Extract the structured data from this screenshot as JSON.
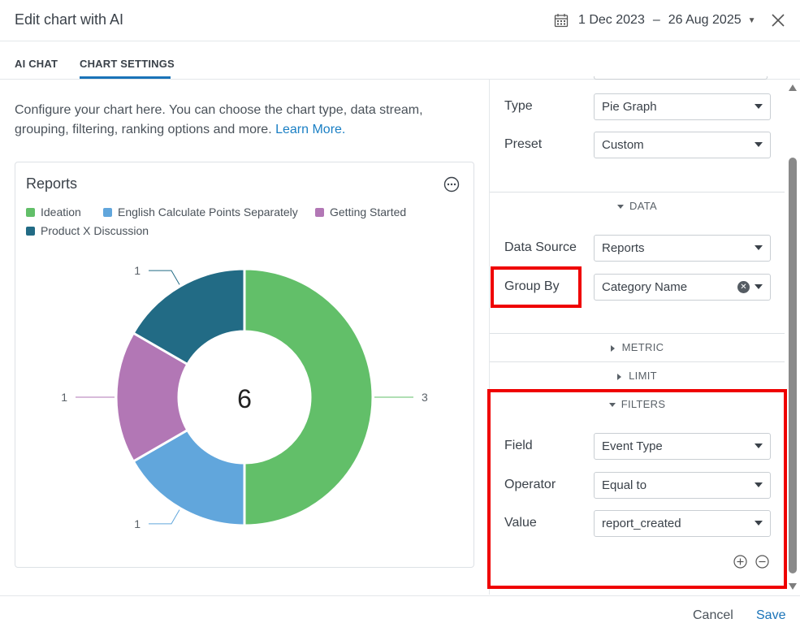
{
  "dialog": {
    "title": "Edit chart with AI",
    "date_start": "1 Dec 2023",
    "date_sep": "–",
    "date_end": "26 Aug 2025"
  },
  "tabs": [
    {
      "label": "AI CHAT",
      "active": false
    },
    {
      "label": "CHART SETTINGS",
      "active": true
    }
  ],
  "intro": {
    "text": "Configure your chart here. You can choose the chart type, data stream, grouping, filtering, ranking options and more.",
    "link": "Learn More."
  },
  "chart_card": {
    "title": "Reports",
    "center_total": "6"
  },
  "chart_data": {
    "type": "pie",
    "title": "Reports",
    "donut": true,
    "center_label": "6",
    "series": [
      {
        "name": "Ideation",
        "value": 3,
        "color": "#62bf69"
      },
      {
        "name": "English Calculate Points Separately",
        "value": 1,
        "color": "#61a6dc"
      },
      {
        "name": "Getting Started",
        "value": 1,
        "color": "#b277b5"
      },
      {
        "name": "Product X Discussion",
        "value": 1,
        "color": "#226b85"
      }
    ],
    "legend_position": "top-left"
  },
  "settings": {
    "type_label": "Type",
    "type_value": "Pie Graph",
    "preset_label": "Preset",
    "preset_value": "Custom",
    "data_section": "DATA",
    "data_source_label": "Data Source",
    "data_source_value": "Reports",
    "group_by_label": "Group By",
    "group_by_value": "Category Name",
    "metric_section": "METRIC",
    "limit_section": "LIMIT",
    "filters_section": "FILTERS",
    "field_label": "Field",
    "field_value": "Event Type",
    "operator_label": "Operator",
    "operator_value": "Equal to",
    "value_label": "Value",
    "value_value": "report_created"
  },
  "footer": {
    "cancel": "Cancel",
    "save": "Save"
  },
  "colors": {
    "accent": "#1a73b8",
    "highlight": "#ef0000"
  }
}
